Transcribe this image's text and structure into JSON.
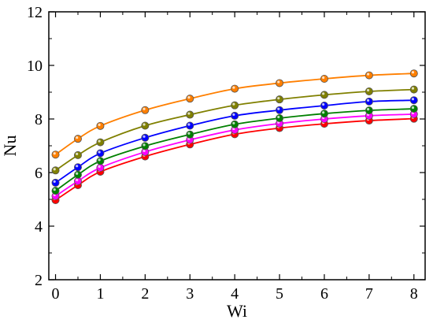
{
  "chart_data": {
    "type": "line",
    "title": "",
    "xlabel": "Wi",
    "ylabel": "Nu",
    "xlim": [
      -0.15,
      8.25
    ],
    "ylim": [
      2,
      12
    ],
    "xticks": [
      0,
      1,
      2,
      3,
      4,
      5,
      6,
      7,
      8
    ],
    "yticks": [
      2,
      4,
      6,
      8,
      10,
      12
    ],
    "x": [
      0,
      0.5,
      1,
      2,
      3,
      4,
      5,
      6,
      7,
      8
    ],
    "grid": false,
    "legend": "none",
    "markers": "circle",
    "series": [
      {
        "color": "#ff7f00",
        "values": [
          6.67,
          7.26,
          7.74,
          8.33,
          8.76,
          9.13,
          9.34,
          9.5,
          9.63,
          9.7
        ]
      },
      {
        "color": "#808000",
        "values": [
          6.08,
          6.65,
          7.13,
          7.75,
          8.16,
          8.51,
          8.73,
          8.9,
          9.03,
          9.1
        ]
      },
      {
        "color": "#0000ff",
        "values": [
          5.62,
          6.2,
          6.72,
          7.3,
          7.75,
          8.12,
          8.33,
          8.5,
          8.65,
          8.7
        ]
      },
      {
        "color": "#008000",
        "values": [
          5.32,
          5.92,
          6.43,
          6.99,
          7.42,
          7.8,
          8.03,
          8.2,
          8.32,
          8.38
        ]
      },
      {
        "color": "#ff00ff",
        "values": [
          5.12,
          5.68,
          6.18,
          6.77,
          7.22,
          7.59,
          7.83,
          8.0,
          8.12,
          8.18
        ]
      },
      {
        "color": "#ff0000",
        "values": [
          4.97,
          5.53,
          6.03,
          6.6,
          7.05,
          7.43,
          7.66,
          7.82,
          7.94,
          8.01
        ]
      }
    ]
  }
}
